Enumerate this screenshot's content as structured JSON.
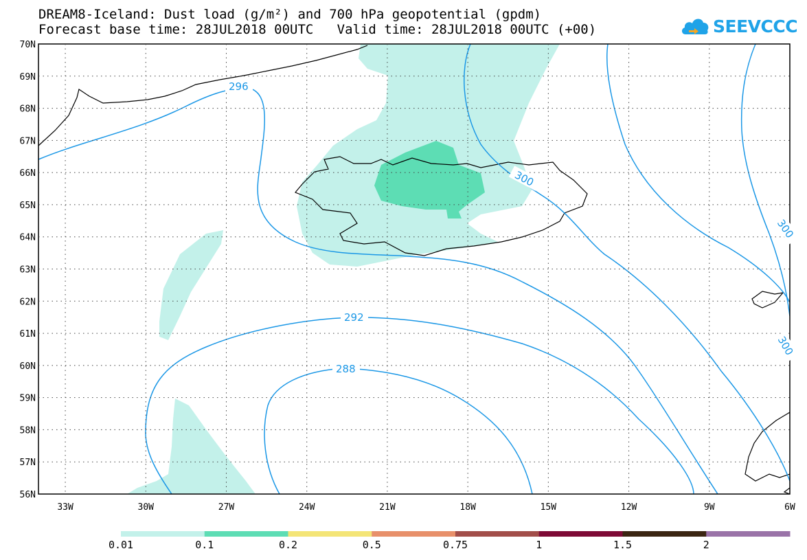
{
  "header": {
    "title_line1": "DREAM8-Iceland: Dust load (g/m²) and 700 hPa geopotential (gpdm)",
    "title_line2": "Forecast base time: 28JUL2018 00UTC   Valid time: 28JUL2018 00UTC (+00)"
  },
  "logo": {
    "text": "SEEVCCC",
    "icon": "cloud-icon",
    "color": "#1fa3e8"
  },
  "map": {
    "lon_range": [
      -34,
      -6
    ],
    "lat_range": [
      56,
      70
    ],
    "x_ticks": [
      "33W",
      "30W",
      "27W",
      "24W",
      "21W",
      "18W",
      "15W",
      "12W",
      "9W",
      "6W"
    ],
    "y_ticks": [
      "56N",
      "57N",
      "58N",
      "59N",
      "60N",
      "61N",
      "62N",
      "63N",
      "64N",
      "65N",
      "66N",
      "67N",
      "68N",
      "69N",
      "70N"
    ],
    "gridlines": "dotted",
    "contour_color": "#1a97e6",
    "contour_labels": [
      "296",
      "300",
      "292",
      "288",
      "300",
      "300"
    ]
  },
  "legend": {
    "labels": [
      "0.01",
      "0.1",
      "0.2",
      "0.5",
      "0.75",
      "1",
      "1.5",
      "2"
    ],
    "colors": [
      "#c3f1ea",
      "#5dddb4",
      "#f4e577",
      "#e8906a",
      "#a24e4a",
      "#7e0a36",
      "#3b2512",
      "#9a73a8"
    ]
  }
}
